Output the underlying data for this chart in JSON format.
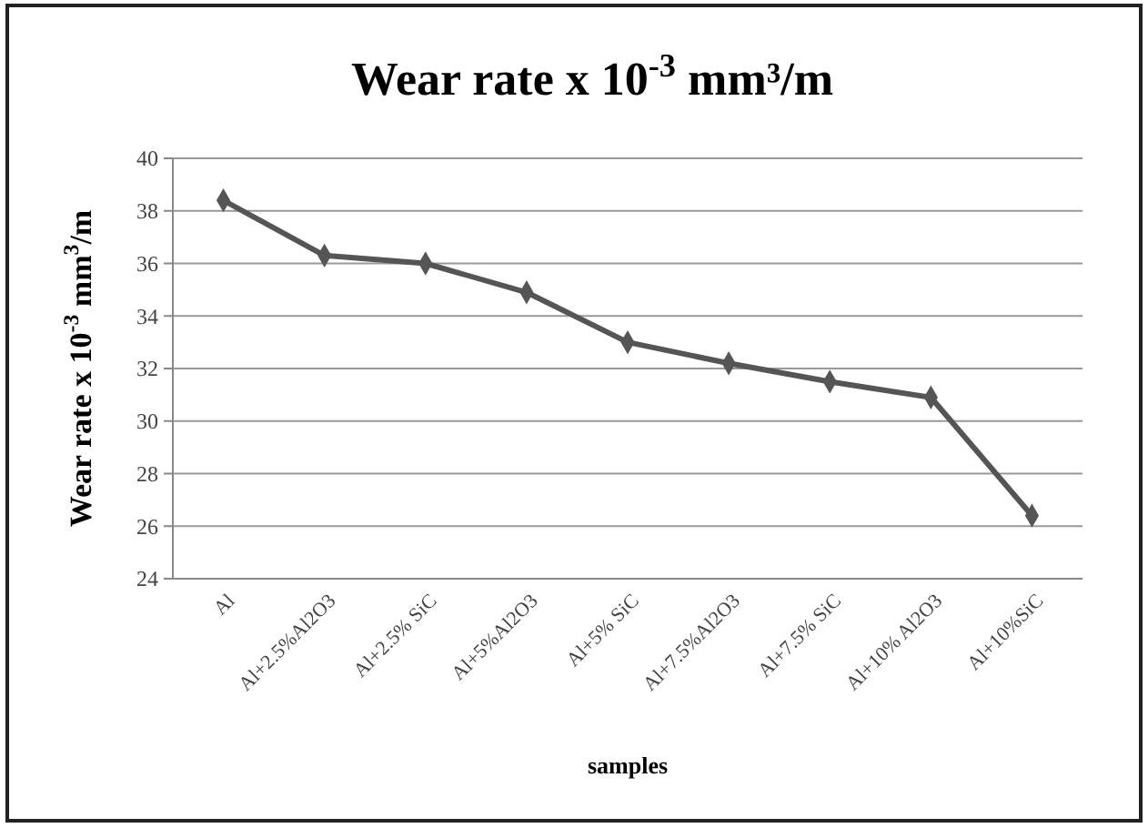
{
  "chart_data": {
    "type": "line",
    "title": "Wear rate x 10$^{-3}$ mm³/m",
    "xlabel": "samples",
    "ylabel": "Wear rate x 10$^{-3}$ mm$^{3}$/m",
    "categories": [
      "Al",
      "Al+2.5%Al2O3",
      "Al+2.5% SiC",
      "Al+5%Al2O3",
      "Al+5% SiC",
      "Al+7.5%Al2O3",
      "Al+7.5% SiC",
      "Al+10% Al2O3",
      "Al+10%SiC"
    ],
    "series": [
      {
        "color": "#555555",
        "values": [
          38.4,
          36.3,
          36.0,
          34.9,
          33.0,
          32.2,
          31.5,
          30.9,
          26.4
        ]
      }
    ],
    "ylim": [
      24,
      40
    ],
    "yticks": [
      24,
      26,
      28,
      30,
      32,
      34,
      36,
      38,
      40
    ],
    "grid": "y",
    "marker": "diamond",
    "line_style": "solid"
  }
}
